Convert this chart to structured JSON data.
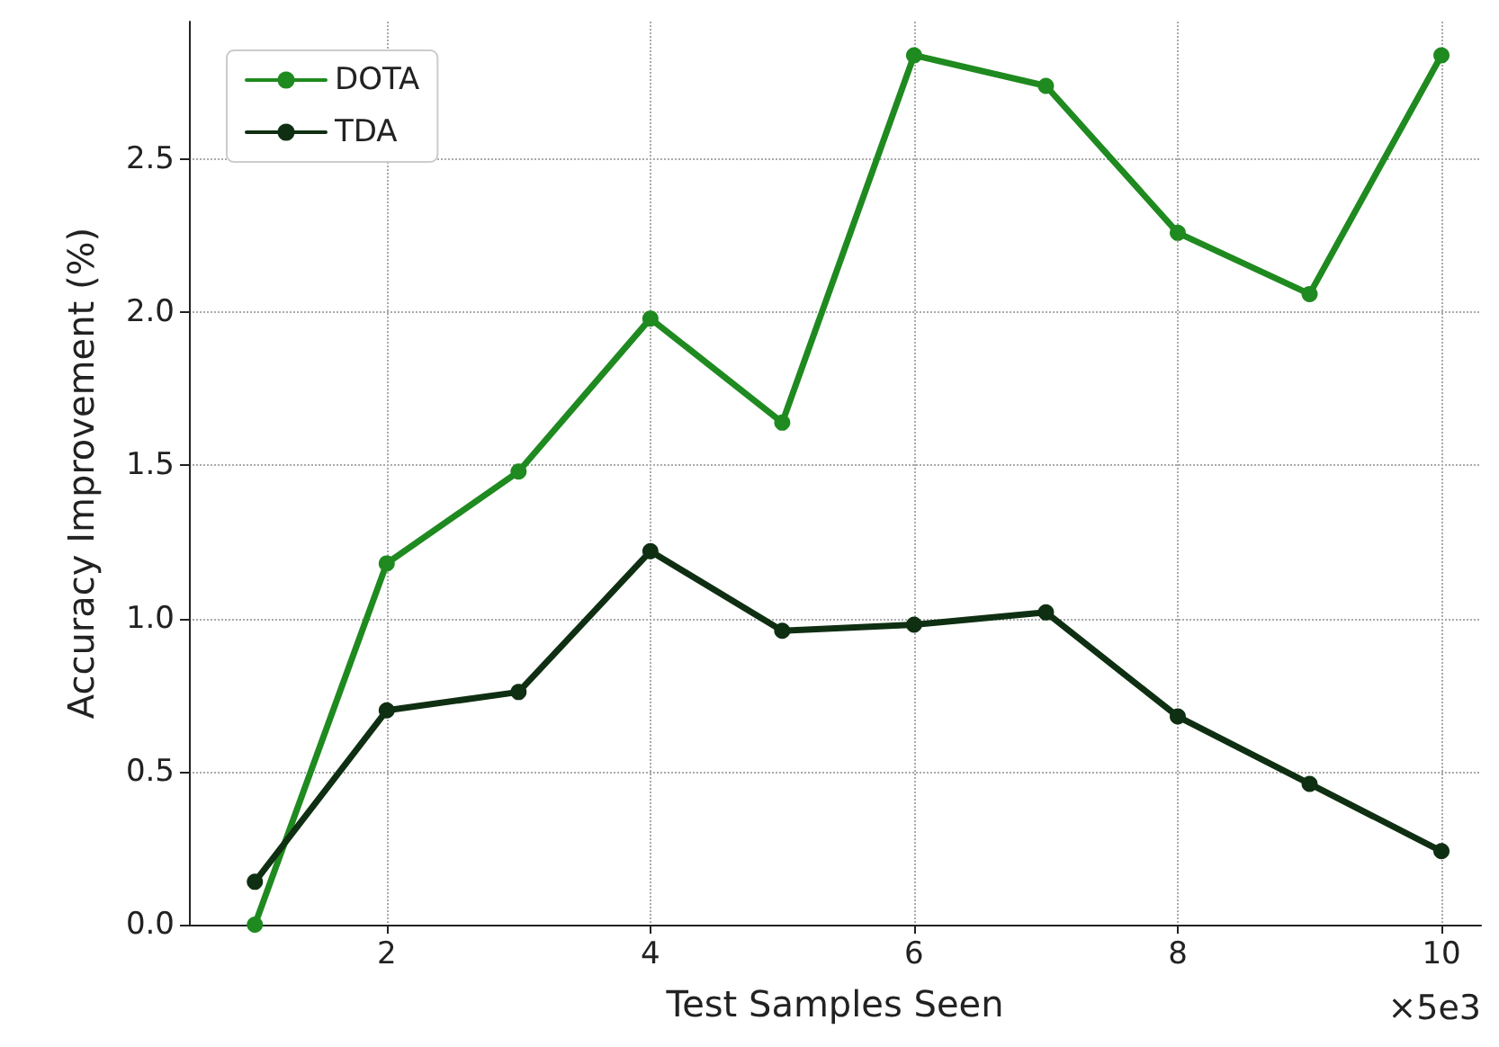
{
  "chart_data": {
    "type": "line",
    "xlabel": "Test Samples Seen",
    "ylabel": "Accuracy Improvement (%)",
    "x": [
      1,
      2,
      3,
      4,
      5,
      6,
      7,
      8,
      9,
      10
    ],
    "series": [
      {
        "name": "DOTA",
        "color": "#1f8a1f",
        "values": [
          0.0,
          1.18,
          1.48,
          1.98,
          1.64,
          2.84,
          2.74,
          2.26,
          2.06,
          2.84
        ]
      },
      {
        "name": "TDA",
        "color": "#0f2f12",
        "values": [
          0.14,
          0.7,
          0.76,
          1.22,
          0.96,
          0.98,
          1.02,
          0.68,
          0.46,
          0.24
        ]
      }
    ],
    "xlim": [
      0.5,
      10.3
    ],
    "xticks": [
      2,
      4,
      6,
      8,
      10
    ],
    "ylim": [
      0,
      2.95
    ],
    "yticks": [
      {
        "value": 0,
        "label": "0.0"
      },
      {
        "value": 0.5,
        "label": "0.5"
      },
      {
        "value": 1,
        "label": "1.0"
      },
      {
        "value": 1.5,
        "label": "1.5"
      },
      {
        "value": 2,
        "label": "2.0"
      },
      {
        "value": 2.5,
        "label": "2.5"
      }
    ],
    "annotations": [
      "×5e3"
    ],
    "grid": true,
    "legend": "top left",
    "marker": "circle",
    "line_style": "solid"
  }
}
